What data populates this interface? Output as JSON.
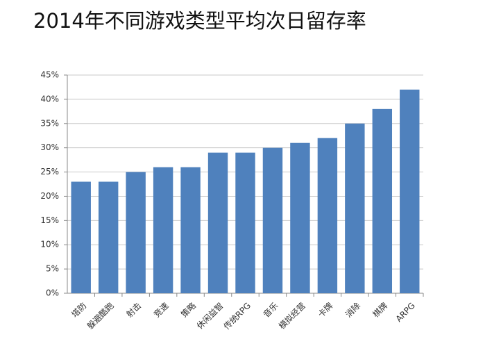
{
  "chart_data": {
    "type": "bar",
    "title": "2014年不同游戏类型平均次日留存率",
    "categories": [
      "塔防",
      "躲避酷跑",
      "射击",
      "竞速",
      "策略",
      "休闲益智",
      "传统RPG",
      "音乐",
      "模拟经营",
      "卡牌",
      "消除",
      "棋牌",
      "ARPG"
    ],
    "values": [
      23,
      23,
      25,
      26,
      26,
      29,
      29,
      30,
      31,
      32,
      35,
      38,
      42
    ],
    "color": "#4f81bd",
    "ylim": [
      0,
      45
    ],
    "yticks": [
      {
        "value": 0,
        "label": "0%"
      },
      {
        "value": 5,
        "label": "5%"
      },
      {
        "value": 10,
        "label": "10%"
      },
      {
        "value": 15,
        "label": "15%"
      },
      {
        "value": 20,
        "label": "20%"
      },
      {
        "value": 25,
        "label": "25%"
      },
      {
        "value": 30,
        "label": "30%"
      },
      {
        "value": 35,
        "label": "35%"
      },
      {
        "value": 40,
        "label": "40%"
      },
      {
        "value": 45,
        "label": "45%"
      }
    ],
    "grid": true
  }
}
